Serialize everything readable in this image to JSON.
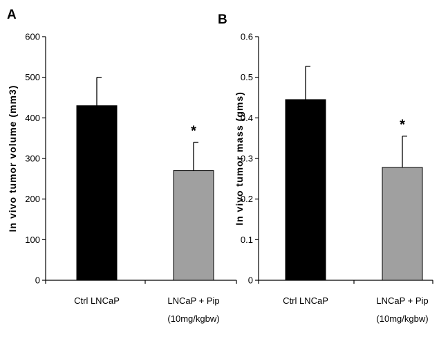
{
  "chart_data": [
    {
      "type": "bar",
      "panel": "A",
      "title": "",
      "xlabel": "",
      "ylabel": "In vivo tumor volume (mm3)",
      "categories": [
        [
          "Ctrl LNCaP"
        ],
        [
          "LNCaP + Pip",
          "(10mg/kgbw)"
        ]
      ],
      "values": [
        430,
        270
      ],
      "errors": [
        70,
        70
      ],
      "annotations": [
        "",
        "*"
      ],
      "colors": [
        "#000000",
        "#a0a0a0"
      ],
      "ylim": [
        0,
        600
      ],
      "yticks": [
        0,
        100,
        200,
        300,
        400,
        500,
        600
      ],
      "ytick_labels": [
        "0",
        "100",
        "200",
        "300",
        "400",
        "500",
        "600"
      ],
      "grid": false,
      "legend": "none"
    },
    {
      "type": "bar",
      "panel": "B",
      "title": "",
      "xlabel": "",
      "ylabel": "In vivo tumor mass (gms)",
      "categories": [
        [
          "Ctrl LNCaP"
        ],
        [
          "LNCaP + Pip",
          "(10mg/kgbw)"
        ]
      ],
      "values": [
        0.445,
        0.278
      ],
      "errors": [
        0.082,
        0.077
      ],
      "annotations": [
        "",
        "*"
      ],
      "colors": [
        "#000000",
        "#a0a0a0"
      ],
      "ylim": [
        0,
        0.6
      ],
      "yticks": [
        0,
        0.1,
        0.2,
        0.3,
        0.4,
        0.5,
        0.6
      ],
      "ytick_labels": [
        "0",
        "0.1",
        "0.2",
        "0.3",
        "0.4",
        "0.5",
        "0.6"
      ],
      "grid": false,
      "legend": "none"
    }
  ]
}
